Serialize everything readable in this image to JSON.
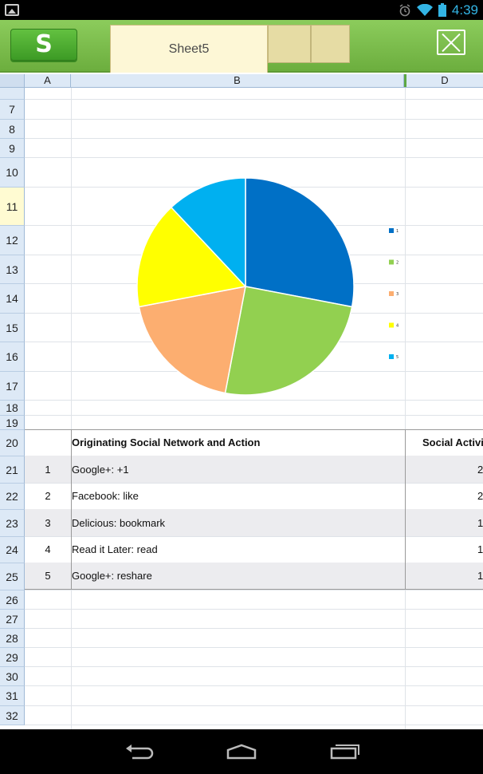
{
  "status_bar": {
    "time": "4:39",
    "icons": [
      "image-notification-icon",
      "alarm-icon",
      "wifi-icon",
      "battery-icon"
    ]
  },
  "app": {
    "logo_letter": "S",
    "sheet_tab_label": "Sheet5"
  },
  "columns": [
    "A",
    "B",
    "D"
  ],
  "rows": [
    {
      "n": "7"
    },
    {
      "n": "8"
    },
    {
      "n": "9"
    },
    {
      "n": "10"
    },
    {
      "n": "11"
    },
    {
      "n": "12"
    },
    {
      "n": "13"
    },
    {
      "n": "14"
    },
    {
      "n": "15"
    },
    {
      "n": "16"
    },
    {
      "n": "17"
    },
    {
      "n": "18"
    },
    {
      "n": "19"
    },
    {
      "n": "20"
    },
    {
      "n": "21"
    },
    {
      "n": "22"
    },
    {
      "n": "23"
    },
    {
      "n": "24"
    },
    {
      "n": "25"
    },
    {
      "n": "26"
    },
    {
      "n": "27"
    },
    {
      "n": "28"
    },
    {
      "n": "29"
    },
    {
      "n": "30"
    },
    {
      "n": "31"
    },
    {
      "n": "32"
    }
  ],
  "table": {
    "header": {
      "b": "Originating Social Network and Action",
      "d": "Social Activi"
    },
    "rows": [
      {
        "a": "1",
        "b": "Google+: +1",
        "d": "2"
      },
      {
        "a": "2",
        "b": "Facebook: like",
        "d": "2"
      },
      {
        "a": "3",
        "b": "Delicious: bookmark",
        "d": "1"
      },
      {
        "a": "4",
        "b": "Read it Later: read",
        "d": "1"
      },
      {
        "a": "5",
        "b": "Google+: reshare",
        "d": "1"
      }
    ]
  },
  "chart_data": {
    "type": "pie",
    "categories": [
      "1",
      "2",
      "3",
      "4",
      "5"
    ],
    "values": [
      28,
      25,
      19,
      16,
      12
    ],
    "colors": [
      "#0070c6",
      "#92d050",
      "#fcae70",
      "#ffff00",
      "#00b0f0"
    ],
    "legend_position": "right"
  }
}
